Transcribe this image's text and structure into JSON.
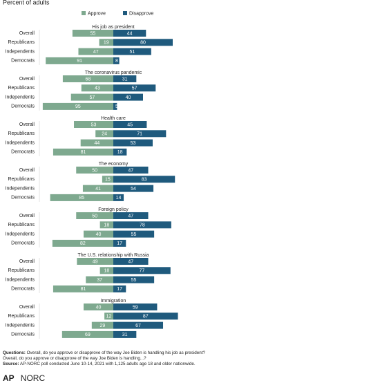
{
  "chart_data": {
    "type": "diverging_bar",
    "subtitle": "Percent of adults",
    "series": [
      {
        "name": "Approve",
        "color": "#7ea98f"
      },
      {
        "name": "Disapprove",
        "color": "#1f5a7d"
      }
    ],
    "panels": [
      {
        "title": "His job as president",
        "categories": [
          "Overall",
          "Republicans",
          "Independents",
          "Democrats"
        ],
        "approve": [
          55,
          19,
          47,
          91
        ],
        "disapprove": [
          44,
          80,
          51,
          8
        ]
      },
      {
        "title": "The coronavirus pandemic",
        "categories": [
          "Overall",
          "Republicans",
          "Independents",
          "Democrats"
        ],
        "approve": [
          68,
          43,
          57,
          95
        ],
        "disapprove": [
          31,
          57,
          40,
          5
        ]
      },
      {
        "title": "Health care",
        "categories": [
          "Overall",
          "Republicans",
          "Independents",
          "Democrats"
        ],
        "approve": [
          53,
          24,
          44,
          81
        ],
        "disapprove": [
          45,
          71,
          53,
          18
        ]
      },
      {
        "title": "The economy",
        "categories": [
          "Overall",
          "Republicans",
          "Independents",
          "Democrats"
        ],
        "approve": [
          50,
          15,
          41,
          85
        ],
        "disapprove": [
          47,
          83,
          54,
          14
        ]
      },
      {
        "title": "Foreign policy",
        "categories": [
          "Overall",
          "Republicans",
          "Independents",
          "Democrats"
        ],
        "approve": [
          50,
          18,
          40,
          82
        ],
        "disapprove": [
          47,
          78,
          55,
          17
        ]
      },
      {
        "title": "The U.S. relationship with Russia",
        "categories": [
          "Overall",
          "Republicans",
          "Independents",
          "Democrats"
        ],
        "approve": [
          49,
          18,
          37,
          81
        ],
        "disapprove": [
          47,
          77,
          55,
          17
        ]
      },
      {
        "title": "Immigration",
        "categories": [
          "Overall",
          "Republicans",
          "Independents",
          "Democrats"
        ],
        "approve": [
          40,
          12,
          29,
          69
        ],
        "disapprove": [
          59,
          87,
          67,
          31
        ]
      }
    ]
  },
  "footer": {
    "questions_label": "Questions:",
    "questions": [
      "Overall, do you approve or disapprove of the way Joe Biden is handling his job as president?",
      "Overall, do you approve or disapprove of the way Joe Biden is handling...?"
    ],
    "source_label": "Source:",
    "source": "AP-NORC poll conducted June 10-14, 2021 with 1,125 adults age 18 and older nationwide.",
    "logo": [
      "AP",
      "NORC"
    ]
  }
}
